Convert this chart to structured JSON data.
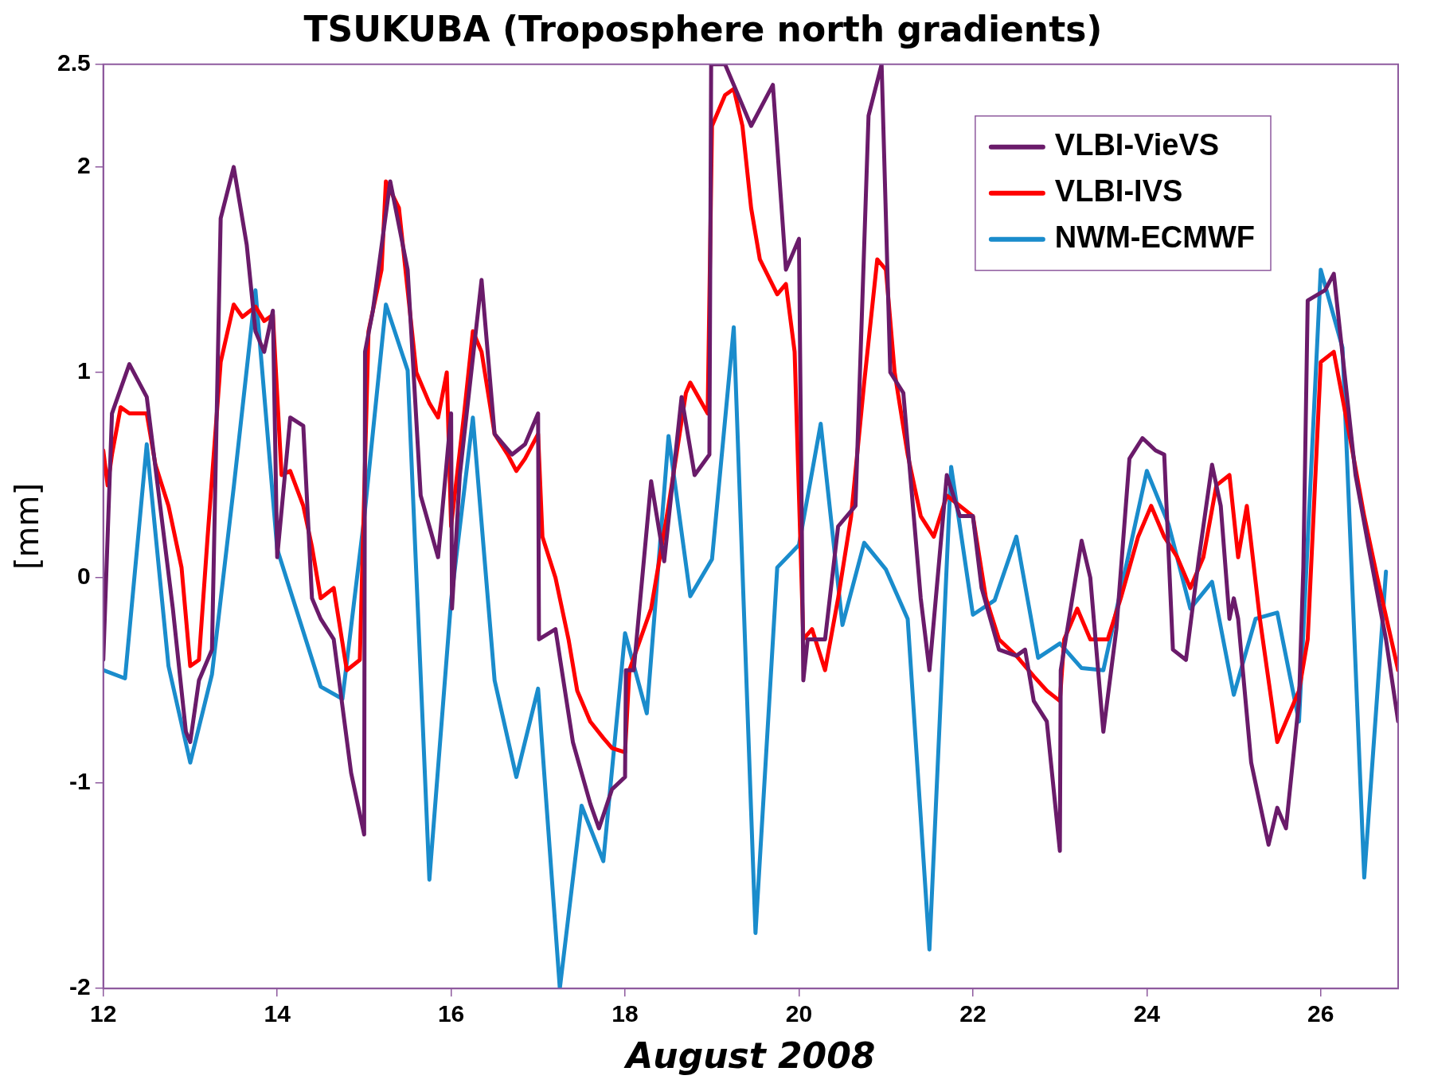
{
  "chart_data": {
    "type": "line",
    "title": "TSUKUBA (Troposphere north gradients)",
    "xlabel": "August 2008",
    "ylabel": "[mm]",
    "xlim": [
      12,
      26.89
    ],
    "xticks": [
      12,
      14,
      16,
      18,
      20,
      22,
      24,
      26
    ],
    "ylim": [
      -2,
      2.5
    ],
    "yticks": [
      -2,
      -1,
      0,
      1,
      2,
      2.5
    ],
    "grid": false,
    "legend": "top right",
    "marker": "none",
    "line_style": "solid",
    "series": [
      {
        "name": "VLBI-VieVS",
        "color": "#6a1b6a",
        "x": [
          12,
          12.1,
          12.3,
          12.5,
          12.8,
          12.95,
          13,
          13.1,
          13.25,
          13.35,
          13.5,
          13.65,
          13.75,
          13.85,
          13.95,
          14,
          14.15,
          14.3,
          14.4,
          14.5,
          14.65,
          14.85,
          15,
          15.01,
          15.1,
          15.3,
          15.5,
          15.65,
          15.85,
          16,
          16.01,
          16.1,
          16.35,
          16.5,
          16.7,
          16.85,
          17,
          17.01,
          17.2,
          17.4,
          17.6,
          17.7,
          17.85,
          18,
          18.01,
          18.1,
          18.3,
          18.45,
          18.65,
          18.8,
          18.97,
          18.99,
          19.15,
          19.45,
          19.7,
          19.85,
          20,
          20.05,
          20.1,
          20.3,
          20.45,
          20.65,
          20.8,
          20.95,
          21.05,
          21.2,
          21.4,
          21.5,
          21.7,
          21.85,
          22,
          22.1,
          22.3,
          22.5,
          22.6,
          22.7,
          22.85,
          23,
          23.01,
          23.25,
          23.35,
          23.5,
          23.65,
          23.8,
          23.95,
          24.1,
          24.2,
          24.3,
          24.45,
          24.6,
          24.75,
          24.85,
          24.95,
          25,
          25.05,
          25.2,
          25.4,
          25.5,
          25.6,
          25.75,
          25.8,
          25.85,
          26.05,
          26.15,
          26.4,
          26.55,
          26.75,
          26.89
        ],
        "values": [
          -0.4,
          0.8,
          1.04,
          0.88,
          -0.15,
          -0.75,
          -0.8,
          -0.5,
          -0.35,
          1.75,
          2.0,
          1.62,
          1.2,
          1.1,
          1.3,
          0.1,
          0.78,
          0.74,
          -0.1,
          -0.2,
          -0.3,
          -0.95,
          -1.25,
          1.1,
          1.3,
          1.93,
          1.5,
          0.4,
          0.1,
          0.8,
          -0.15,
          0.5,
          1.45,
          0.7,
          0.6,
          0.65,
          0.8,
          -0.3,
          -0.25,
          -0.8,
          -1.1,
          -1.22,
          -1.03,
          -0.97,
          -0.45,
          -0.45,
          0.47,
          0.08,
          0.88,
          0.5,
          0.6,
          2.5,
          2.5,
          2.2,
          2.4,
          1.5,
          1.65,
          -0.5,
          -0.3,
          -0.3,
          0.25,
          0.35,
          2.25,
          2.5,
          1.0,
          0.9,
          -0.1,
          -0.45,
          0.5,
          0.3,
          0.3,
          -0.05,
          -0.35,
          -0.38,
          -0.35,
          -0.6,
          -0.7,
          -1.33,
          -0.45,
          0.18,
          0.0,
          -0.75,
          -0.25,
          0.58,
          0.68,
          0.62,
          0.6,
          -0.35,
          -0.4,
          0.1,
          0.55,
          0.35,
          -0.2,
          -0.1,
          -0.2,
          -0.9,
          -1.3,
          -1.12,
          -1.22,
          -0.6,
          0.05,
          1.35,
          1.4,
          1.48,
          0.5,
          0.15,
          -0.3,
          -0.7
        ]
      },
      {
        "name": "VLBI-IVS",
        "color": "#ff0000",
        "x": [
          12,
          12.05,
          12.1,
          12.2,
          12.3,
          12.5,
          12.6,
          12.75,
          12.9,
          13,
          13.1,
          13.2,
          13.35,
          13.5,
          13.6,
          13.75,
          13.85,
          13.95,
          14.05,
          14.15,
          14.3,
          14.4,
          14.5,
          14.65,
          14.8,
          14.95,
          15.05,
          15.2,
          15.25,
          15.4,
          15.6,
          15.75,
          15.85,
          15.95,
          16,
          16.15,
          16.25,
          16.35,
          16.5,
          16.65,
          16.75,
          16.85,
          17,
          17.05,
          17.2,
          17.35,
          17.45,
          17.6,
          17.75,
          17.85,
          18,
          18.05,
          18.3,
          18.5,
          18.7,
          18.75,
          18.95,
          19,
          19.15,
          19.25,
          19.35,
          19.45,
          19.55,
          19.75,
          19.85,
          19.95,
          20.05,
          20.15,
          20.3,
          20.45,
          20.6,
          20.75,
          20.9,
          21,
          21.1,
          21.25,
          21.4,
          21.55,
          21.7,
          21.85,
          22,
          22.15,
          22.3,
          22.5,
          22.7,
          22.85,
          23,
          23.05,
          23.2,
          23.35,
          23.55,
          23.7,
          23.9,
          24.05,
          24.2,
          24.35,
          24.5,
          24.65,
          24.8,
          24.95,
          25.05,
          25.15,
          25.3,
          25.5,
          25.6,
          25.75,
          25.85,
          26,
          26.15,
          26.35,
          26.5,
          26.65,
          26.89
        ],
        "values": [
          0.62,
          0.45,
          0.6,
          0.83,
          0.8,
          0.8,
          0.55,
          0.35,
          0.05,
          -0.43,
          -0.4,
          0.2,
          1.05,
          1.33,
          1.27,
          1.32,
          1.25,
          1.28,
          0.5,
          0.52,
          0.35,
          0.15,
          -0.1,
          -0.05,
          -0.45,
          -0.4,
          1.2,
          1.5,
          1.93,
          1.8,
          1.0,
          0.85,
          0.78,
          1.0,
          0.25,
          0.8,
          1.2,
          1.1,
          0.7,
          0.6,
          0.52,
          0.58,
          0.7,
          0.2,
          0.0,
          -0.3,
          -0.55,
          -0.7,
          -0.78,
          -0.83,
          -0.85,
          -0.45,
          -0.15,
          0.35,
          0.9,
          0.95,
          0.8,
          2.2,
          2.35,
          2.38,
          2.2,
          1.8,
          1.55,
          1.38,
          1.43,
          1.1,
          -0.3,
          -0.25,
          -0.45,
          -0.1,
          0.3,
          0.95,
          1.55,
          1.5,
          1.0,
          0.6,
          0.3,
          0.2,
          0.4,
          0.35,
          0.3,
          -0.1,
          -0.3,
          -0.38,
          -0.48,
          -0.55,
          -0.6,
          -0.3,
          -0.15,
          -0.3,
          -0.3,
          -0.1,
          0.2,
          0.35,
          0.2,
          0.1,
          -0.05,
          0.1,
          0.45,
          0.5,
          0.1,
          0.35,
          -0.2,
          -0.8,
          -0.7,
          -0.55,
          -0.3,
          1.05,
          1.1,
          0.65,
          0.3,
          0.0,
          -0.45
        ]
      },
      {
        "name": "NWM-ECMWF",
        "color": "#1a8ccc",
        "x": [
          12,
          12.25,
          12.5,
          12.75,
          13,
          13.25,
          13.5,
          13.75,
          14,
          14.5,
          14.75,
          15,
          15.25,
          15.5,
          15.75,
          16,
          16.25,
          16.5,
          16.75,
          17,
          17.25,
          17.5,
          17.75,
          18,
          18.25,
          18.5,
          18.75,
          19,
          19.25,
          19.5,
          19.75,
          20,
          20.25,
          20.5,
          20.75,
          21,
          21.25,
          21.5,
          21.75,
          22,
          22.25,
          22.5,
          22.75,
          23,
          23.25,
          23.5,
          24,
          24.25,
          24.5,
          24.75,
          25,
          25.25,
          25.5,
          25.75,
          26,
          26.25,
          26.5,
          26.75
        ],
        "values": [
          -0.45,
          -0.49,
          0.65,
          -0.43,
          -0.9,
          -0.47,
          0.44,
          1.4,
          0.14,
          -0.53,
          -0.59,
          0.29,
          1.33,
          1.01,
          -1.47,
          -0.11,
          0.78,
          -0.5,
          -0.97,
          -0.54,
          -2.0,
          -1.11,
          -1.38,
          -0.27,
          -0.66,
          0.69,
          -0.09,
          0.09,
          1.22,
          -1.73,
          0.05,
          0.16,
          0.75,
          -0.23,
          0.17,
          0.04,
          -0.2,
          -1.81,
          0.54,
          -0.18,
          -0.11,
          0.2,
          -0.39,
          -0.32,
          -0.44,
          -0.45,
          0.52,
          0.26,
          -0.15,
          -0.02,
          -0.57,
          -0.2,
          -0.17,
          -0.7,
          1.5,
          1.12,
          -1.46,
          0.03
        ]
      }
    ]
  }
}
